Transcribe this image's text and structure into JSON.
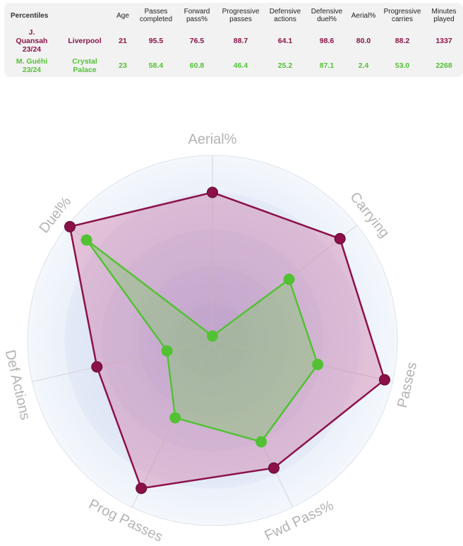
{
  "table": {
    "corner_label": "Percentiles",
    "headers": [
      "Age",
      "Passes\ncompleted",
      "Forward\npass%",
      "Progressive\npasses",
      "Defensive\nactions",
      "Defensive\nduel%",
      "Aerial%",
      "Progressive\ncarries",
      "Minutes\nplayed"
    ],
    "rows": [
      {
        "player": "J.\nQuansah\n23/24",
        "team": "Liverpool",
        "values": [
          "21",
          "95.5",
          "76.5",
          "88.7",
          "64.1",
          "98.6",
          "80.0",
          "88.2",
          "1337"
        ]
      },
      {
        "player": "M. Guéhi\n23/24",
        "team": "Crystal\nPalace",
        "values": [
          "23",
          "58.4",
          "60.8",
          "46.4",
          "25.2",
          "87.1",
          "2.4",
          "53.0",
          "2268"
        ]
      }
    ]
  },
  "colors": {
    "series_a": "#8c1148",
    "series_b": "#52c234",
    "axis_label": "#b3b3b3"
  },
  "chart_data": {
    "type": "radar",
    "axes": [
      "Aerial%",
      "Carrying",
      "Passes",
      "Fwd Pass%",
      "Prog Passes",
      "Def Actions",
      "Duel%"
    ],
    "range": [
      0,
      100
    ],
    "series": [
      {
        "name": "J. Quansah 23/24",
        "values": [
          80.0,
          88.2,
          95.5,
          76.5,
          88.7,
          64.1,
          98.6
        ]
      },
      {
        "name": "M. Guéhi 23/24",
        "values": [
          2.4,
          53.0,
          58.4,
          60.8,
          46.4,
          25.2,
          87.1
        ]
      }
    ]
  }
}
